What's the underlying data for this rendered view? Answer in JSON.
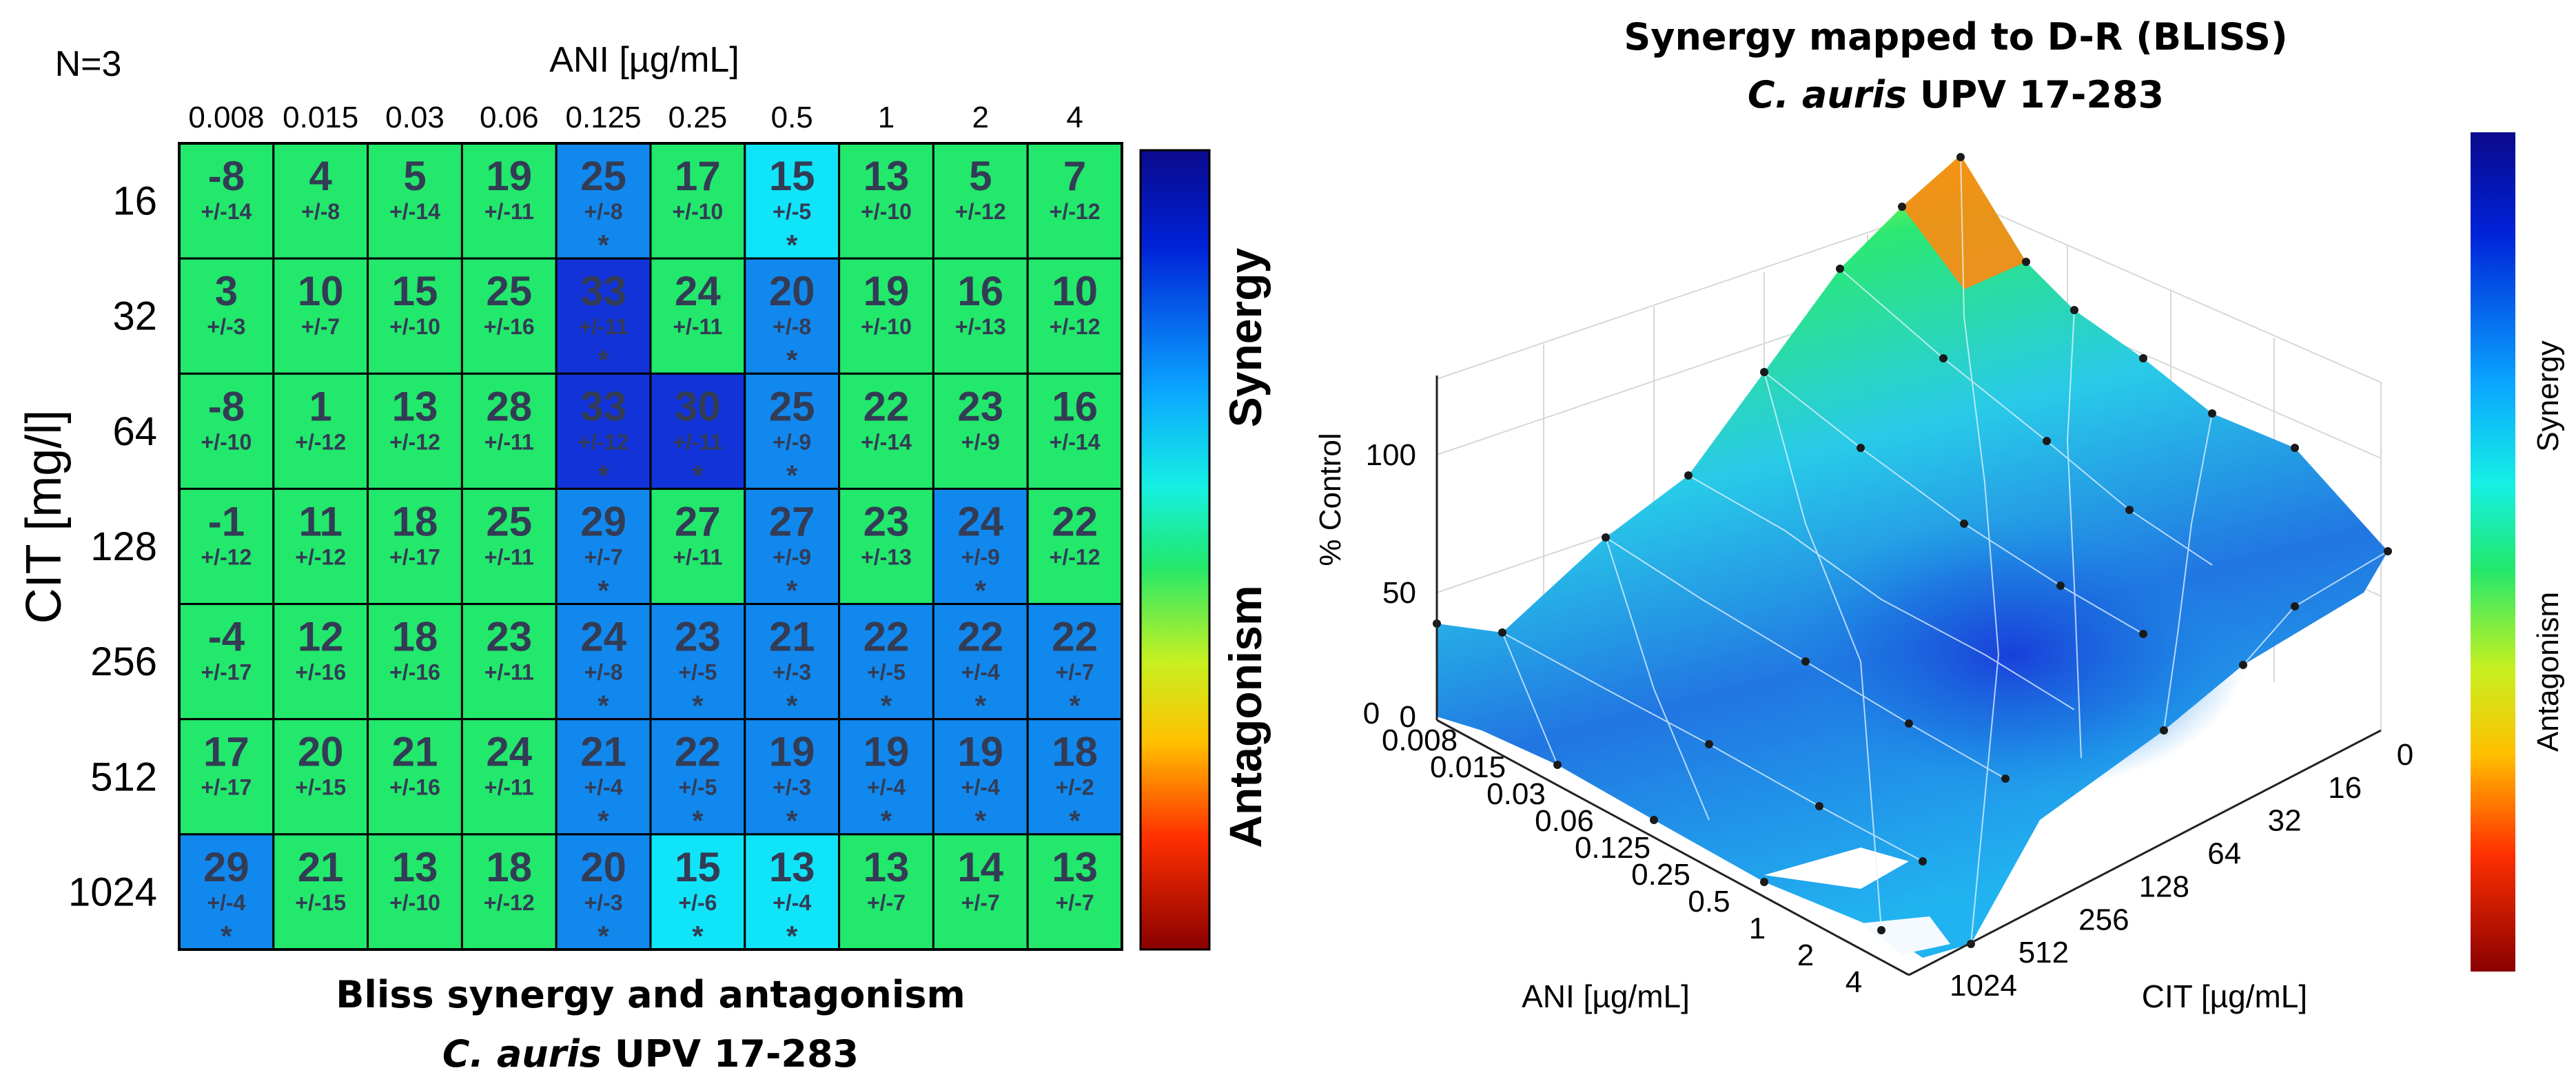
{
  "heatmap": {
    "n_label": "N=3",
    "caption_line1": "Bliss synergy and antagonism",
    "caption_species": "C. auris",
    "caption_strain": "UPV 17-283",
    "colorbar_label_top": "Synergy",
    "colorbar_label_bottom": "Antagonism"
  },
  "surface": {
    "title_line1": "Synergy mapped to D-R (BLISS)",
    "title_species": "C. auris",
    "title_strain": "UPV 17-283",
    "z_label": "% Control",
    "z_ticks": [
      "100",
      "50",
      "0"
    ],
    "ani_axis_label": "ANI [µg/mL]",
    "cit_axis_label": "CIT [µg/mL]",
    "ani_ticks": [
      "0",
      "0.008",
      "0.015",
      "0.03",
      "0.06",
      "0.125",
      "0.25",
      "0.5",
      "1",
      "2",
      "4"
    ],
    "cit_ticks": [
      "0",
      "16",
      "32",
      "64",
      "128",
      "256",
      "512",
      "1024"
    ],
    "colorbar_label_top": "Synergy",
    "colorbar_label_bottom": "Antagonism"
  },
  "colors": {
    "green": "#22e86c",
    "cyan": "#10e4f8",
    "blue": "#1188ee",
    "darkblue": "#1133d8",
    "text": "#333c55"
  },
  "chart_data": {
    "type": "heatmap",
    "title": "Bliss synergy and antagonism",
    "xlabel": "ANI [µg/mL]",
    "ylabel": "CIT [mg/l]",
    "x_categories": [
      "0.008",
      "0.015",
      "0.03",
      "0.06",
      "0.125",
      "0.25",
      "0.5",
      "1",
      "2",
      "4"
    ],
    "y_categories": [
      "16",
      "32",
      "64",
      "128",
      "256",
      "512",
      "1024"
    ],
    "values": [
      [
        -8,
        4,
        5,
        19,
        25,
        17,
        15,
        13,
        5,
        7
      ],
      [
        3,
        10,
        15,
        25,
        33,
        24,
        20,
        19,
        16,
        10
      ],
      [
        -8,
        1,
        13,
        28,
        33,
        30,
        25,
        22,
        23,
        16
      ],
      [
        -1,
        11,
        18,
        25,
        29,
        27,
        27,
        23,
        24,
        22
      ],
      [
        -4,
        12,
        18,
        23,
        24,
        23,
        21,
        22,
        22,
        22
      ],
      [
        17,
        20,
        21,
        24,
        21,
        22,
        19,
        19,
        19,
        18
      ],
      [
        29,
        21,
        13,
        18,
        20,
        15,
        13,
        13,
        14,
        13
      ]
    ],
    "errors": [
      [
        "+/-14",
        "+/-8",
        "+/-14",
        "+/-11",
        "+/-8",
        "+/-10",
        "+/-5",
        "+/-10",
        "+/-12",
        "+/-12"
      ],
      [
        "+/-3",
        "+/-7",
        "+/-10",
        "+/-16",
        "+/-11",
        "+/-11",
        "+/-8",
        "+/-10",
        "+/-13",
        "+/-12"
      ],
      [
        "+/-10",
        "+/-12",
        "+/-12",
        "+/-11",
        "+/-12",
        "+/-11",
        "+/-9",
        "+/-14",
        "+/-9",
        "+/-14"
      ],
      [
        "+/-12",
        "+/-12",
        "+/-17",
        "+/-11",
        "+/-7",
        "+/-11",
        "+/-9",
        "+/-13",
        "+/-9",
        "+/-12"
      ],
      [
        "+/-17",
        "+/-16",
        "+/-16",
        "+/-11",
        "+/-8",
        "+/-5",
        "+/-3",
        "+/-5",
        "+/-4",
        "+/-7"
      ],
      [
        "+/-17",
        "+/-15",
        "+/-16",
        "+/-11",
        "+/-4",
        "+/-5",
        "+/-3",
        "+/-4",
        "+/-4",
        "+/-2"
      ],
      [
        "+/-4",
        "+/-15",
        "+/-10",
        "+/-12",
        "+/-3",
        "+/-6",
        "+/-4",
        "+/-7",
        "+/-7",
        "+/-7"
      ]
    ],
    "cell_colors": [
      [
        "green",
        "green",
        "green",
        "green",
        "blue",
        "green",
        "cyan",
        "green",
        "green",
        "green"
      ],
      [
        "green",
        "green",
        "green",
        "green",
        "darkblue",
        "green",
        "blue",
        "green",
        "green",
        "green"
      ],
      [
        "green",
        "green",
        "green",
        "green",
        "darkblue",
        "darkblue",
        "blue",
        "green",
        "green",
        "green"
      ],
      [
        "green",
        "green",
        "green",
        "green",
        "blue",
        "green",
        "blue",
        "green",
        "blue",
        "green"
      ],
      [
        "green",
        "green",
        "green",
        "green",
        "blue",
        "blue",
        "blue",
        "blue",
        "blue",
        "blue"
      ],
      [
        "green",
        "green",
        "green",
        "green",
        "blue",
        "blue",
        "blue",
        "blue",
        "blue",
        "blue"
      ],
      [
        "blue",
        "green",
        "green",
        "green",
        "blue",
        "cyan",
        "cyan",
        "green",
        "green",
        "green"
      ]
    ],
    "significant": [
      [
        false,
        false,
        false,
        false,
        true,
        false,
        true,
        false,
        false,
        false
      ],
      [
        false,
        false,
        false,
        false,
        true,
        false,
        true,
        false,
        false,
        false
      ],
      [
        false,
        false,
        false,
        false,
        true,
        true,
        true,
        false,
        false,
        false
      ],
      [
        false,
        false,
        false,
        false,
        true,
        false,
        true,
        false,
        true,
        false
      ],
      [
        false,
        false,
        false,
        false,
        true,
        true,
        true,
        true,
        true,
        true
      ],
      [
        false,
        false,
        false,
        false,
        true,
        true,
        true,
        true,
        true,
        true
      ],
      [
        true,
        false,
        false,
        false,
        true,
        true,
        true,
        false,
        false,
        false
      ]
    ],
    "significance_mark": "*"
  }
}
